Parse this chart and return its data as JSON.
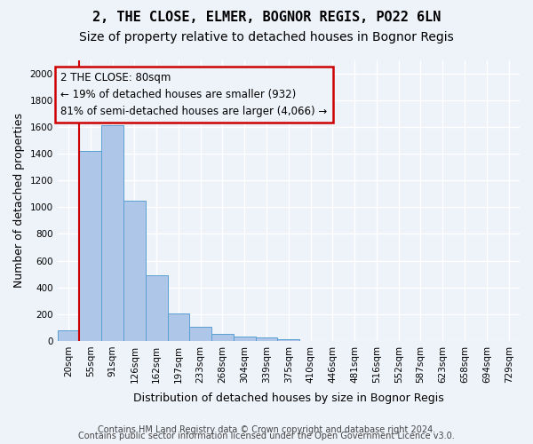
{
  "title": "2, THE CLOSE, ELMER, BOGNOR REGIS, PO22 6LN",
  "subtitle": "Size of property relative to detached houses in Bognor Regis",
  "xlabel": "Distribution of detached houses by size in Bognor Regis",
  "ylabel": "Number of detached properties",
  "bar_values": [
    80,
    1420,
    1610,
    1050,
    490,
    205,
    105,
    50,
    35,
    25,
    15,
    0,
    0,
    0,
    0,
    0,
    0,
    0,
    0,
    0,
    0
  ],
  "bar_labels": [
    "20sqm",
    "55sqm",
    "91sqm",
    "126sqm",
    "162sqm",
    "197sqm",
    "233sqm",
    "268sqm",
    "304sqm",
    "339sqm",
    "375sqm",
    "410sqm",
    "446sqm",
    "481sqm",
    "516sqm",
    "552sqm",
    "587sqm",
    "623sqm",
    "658sqm",
    "694sqm",
    "729sqm"
  ],
  "bar_color": "#aec6e8",
  "bar_edge_color": "#5a9fd4",
  "highlight_line_color": "#cc0000",
  "annotation_text": "2 THE CLOSE: 80sqm\n← 19% of detached houses are smaller (932)\n81% of semi-detached houses are larger (4,066) →",
  "annotation_box_edgecolor": "#cc0000",
  "ylim": [
    0,
    2100
  ],
  "yticks": [
    0,
    200,
    400,
    600,
    800,
    1000,
    1200,
    1400,
    1600,
    1800,
    2000
  ],
  "footer_line1": "Contains HM Land Registry data © Crown copyright and database right 2024.",
  "footer_line2": "Contains public sector information licensed under the Open Government Licence v3.0.",
  "bg_color": "#eef2f9",
  "grid_color": "#ffffff",
  "title_fontsize": 11,
  "subtitle_fontsize": 10,
  "xlabel_fontsize": 9,
  "ylabel_fontsize": 9,
  "tick_fontsize": 7.5,
  "annotation_fontsize": 8.5,
  "footer_fontsize": 7
}
